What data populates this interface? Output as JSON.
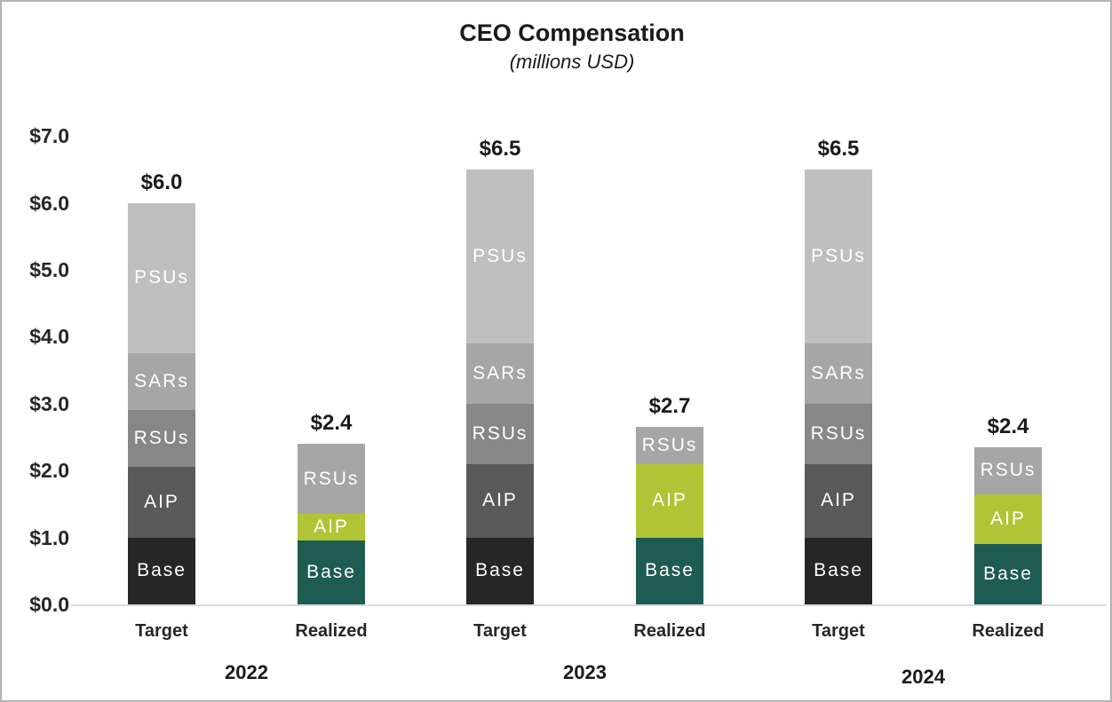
{
  "chart_data": {
    "type": "bar",
    "stacked": true,
    "title": "CEO Compensation",
    "subtitle": "(millions USD)",
    "unit": "millions USD",
    "ylim": [
      0,
      7
    ],
    "y_tick_step": 1.0,
    "y_ticks": [
      "$0.0",
      "$1.0",
      "$2.0",
      "$3.0",
      "$4.0",
      "$5.0",
      "$6.0",
      "$7.0"
    ],
    "grid": false,
    "legend_position": "none (segments labeled inline on bars)",
    "segment_order_bottom_to_top": {
      "target": [
        "Base",
        "AIP",
        "RSUs",
        "SARs",
        "PSUs"
      ],
      "realized": [
        "Base",
        "AIP",
        "RSUs"
      ]
    },
    "colors": {
      "target": {
        "Base": "#262626",
        "AIP": "#595959",
        "RSUs": "#878787",
        "SARs": "#a6a6a6",
        "PSUs": "#bfbfbf"
      },
      "realized": {
        "Base": "#1e5c53",
        "AIP": "#b1c435",
        "RSUs": "#a6a6a6"
      },
      "segment_label_text": "#ffffff",
      "axis_line": "#d9d9d9",
      "text": "#1a1a1a"
    },
    "groups": [
      {
        "year": "2022",
        "bars": [
          {
            "label": "Target",
            "kind": "target",
            "total": 6.0,
            "total_label": "$6.0",
            "segments": [
              {
                "name": "Base",
                "value": 1.0
              },
              {
                "name": "AIP",
                "value": 1.05
              },
              {
                "name": "RSUs",
                "value": 0.85
              },
              {
                "name": "SARs",
                "value": 0.85
              },
              {
                "name": "PSUs",
                "value": 2.25
              }
            ]
          },
          {
            "label": "Realized",
            "kind": "realized",
            "total": 2.4,
            "total_label": "$2.4",
            "segments": [
              {
                "name": "Base",
                "value": 0.95
              },
              {
                "name": "AIP",
                "value": 0.4
              },
              {
                "name": "RSUs",
                "value": 1.05
              }
            ]
          }
        ]
      },
      {
        "year": "2023",
        "bars": [
          {
            "label": "Target",
            "kind": "target",
            "total": 6.5,
            "total_label": "$6.5",
            "segments": [
              {
                "name": "Base",
                "value": 1.0
              },
              {
                "name": "AIP",
                "value": 1.1
              },
              {
                "name": "RSUs",
                "value": 0.9
              },
              {
                "name": "SARs",
                "value": 0.9
              },
              {
                "name": "PSUs",
                "value": 2.6
              }
            ]
          },
          {
            "label": "Realized",
            "kind": "realized",
            "total": 2.65,
            "total_label": "$2.7",
            "segments": [
              {
                "name": "Base",
                "value": 1.0
              },
              {
                "name": "AIP",
                "value": 1.1
              },
              {
                "name": "RSUs",
                "value": 0.55
              }
            ]
          }
        ]
      },
      {
        "year": "2024",
        "bars": [
          {
            "label": "Target",
            "kind": "target",
            "total": 6.5,
            "total_label": "$6.5",
            "segments": [
              {
                "name": "Base",
                "value": 1.0
              },
              {
                "name": "AIP",
                "value": 1.1
              },
              {
                "name": "RSUs",
                "value": 0.9
              },
              {
                "name": "SARs",
                "value": 0.9
              },
              {
                "name": "PSUs",
                "value": 2.6
              }
            ]
          },
          {
            "label": "Realized",
            "kind": "realized",
            "total": 2.35,
            "total_label": "$2.4",
            "segments": [
              {
                "name": "Base",
                "value": 0.9
              },
              {
                "name": "AIP",
                "value": 0.75
              },
              {
                "name": "RSUs",
                "value": 0.7
              }
            ]
          }
        ]
      }
    ]
  }
}
